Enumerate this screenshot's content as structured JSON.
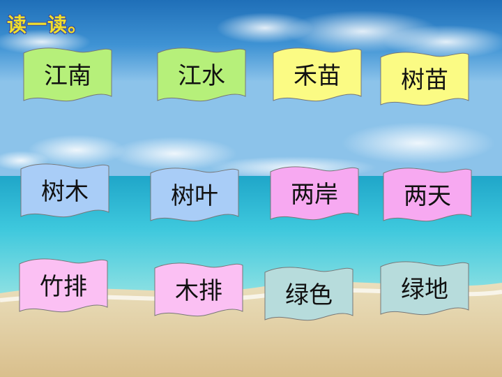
{
  "slide": {
    "title": "读一读。"
  },
  "cards": [
    {
      "text": "江南",
      "color": "#b6f07a"
    },
    {
      "text": "江水",
      "color": "#b6f07a"
    },
    {
      "text": "禾苗",
      "color": "#fbfb84"
    },
    {
      "text": "树苗",
      "color": "#fbfb84"
    },
    {
      "text": "树木",
      "color": "#a9cdf7"
    },
    {
      "text": "树叶",
      "color": "#a9cdf7"
    },
    {
      "text": "两岸",
      "color": "#f7a9f1"
    },
    {
      "text": "两天",
      "color": "#f7a9f1"
    },
    {
      "text": "竹排",
      "color": "#fbc0f3"
    },
    {
      "text": "木排",
      "color": "#fbc0f3"
    },
    {
      "text": "绿色",
      "color": "#b7dcdc"
    },
    {
      "text": "绿地",
      "color": "#b7dcdc"
    }
  ]
}
